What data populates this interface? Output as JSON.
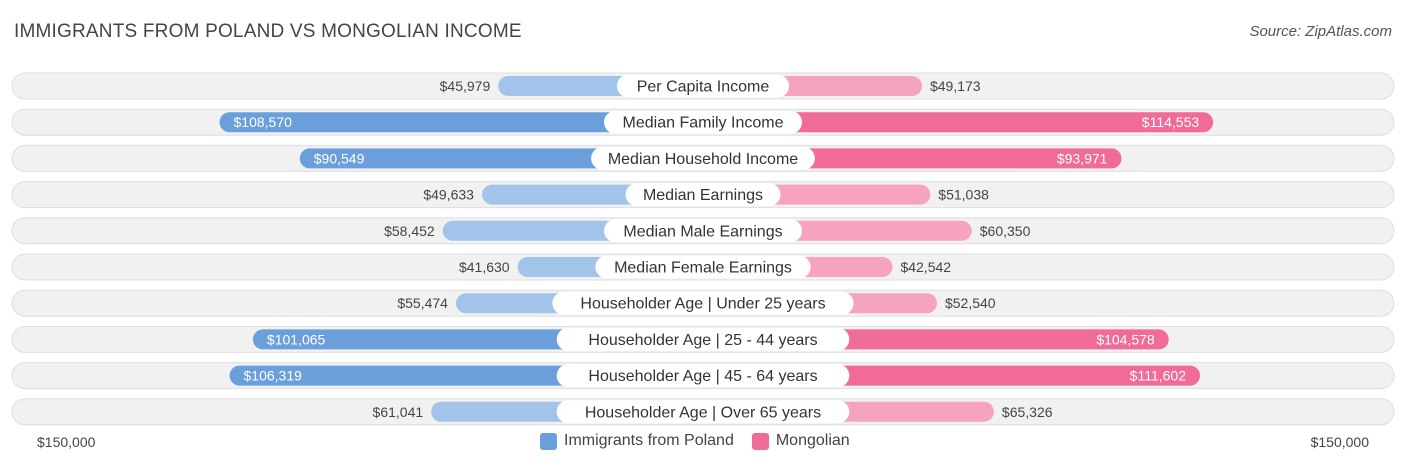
{
  "title": "IMMIGRANTS FROM POLAND VS MONGOLIAN INCOME",
  "source": "Source: ZipAtlas.com",
  "colors": {
    "left_strong": "#6a9fdc",
    "left_light": "#a3c4ea",
    "right_strong": "#f06b98",
    "right_light": "#f5a3bf"
  },
  "legend": {
    "left_label": "Immigrants from Poland",
    "right_label": "Mongolian"
  },
  "axis": {
    "left_label": "$150,000",
    "right_label": "$150,000"
  },
  "chart_data": {
    "type": "bar",
    "orientation": "diverging-horizontal",
    "xlim": [
      0,
      150000
    ],
    "categories": [
      "Per Capita Income",
      "Median Family Income",
      "Median Household Income",
      "Median Earnings",
      "Median Male Earnings",
      "Median Female Earnings",
      "Householder Age | Under 25 years",
      "Householder Age | 25 - 44 years",
      "Householder Age | 45 - 64 years",
      "Householder Age | Over 65 years"
    ],
    "series": [
      {
        "name": "Immigrants from Poland",
        "values": [
          45979,
          108570,
          90549,
          49633,
          58452,
          41630,
          55474,
          101065,
          106319,
          61041
        ],
        "labels": [
          "$45,979",
          "$108,570",
          "$90,549",
          "$49,633",
          "$58,452",
          "$41,630",
          "$55,474",
          "$101,065",
          "$106,319",
          "$61,041"
        ]
      },
      {
        "name": "Mongolian",
        "values": [
          49173,
          114553,
          93971,
          51038,
          60350,
          42542,
          52540,
          104578,
          111602,
          65326
        ],
        "labels": [
          "$49,173",
          "$114,553",
          "$93,971",
          "$51,038",
          "$60,350",
          "$42,542",
          "$52,540",
          "$104,578",
          "$111,602",
          "$65,326"
        ]
      }
    ]
  }
}
